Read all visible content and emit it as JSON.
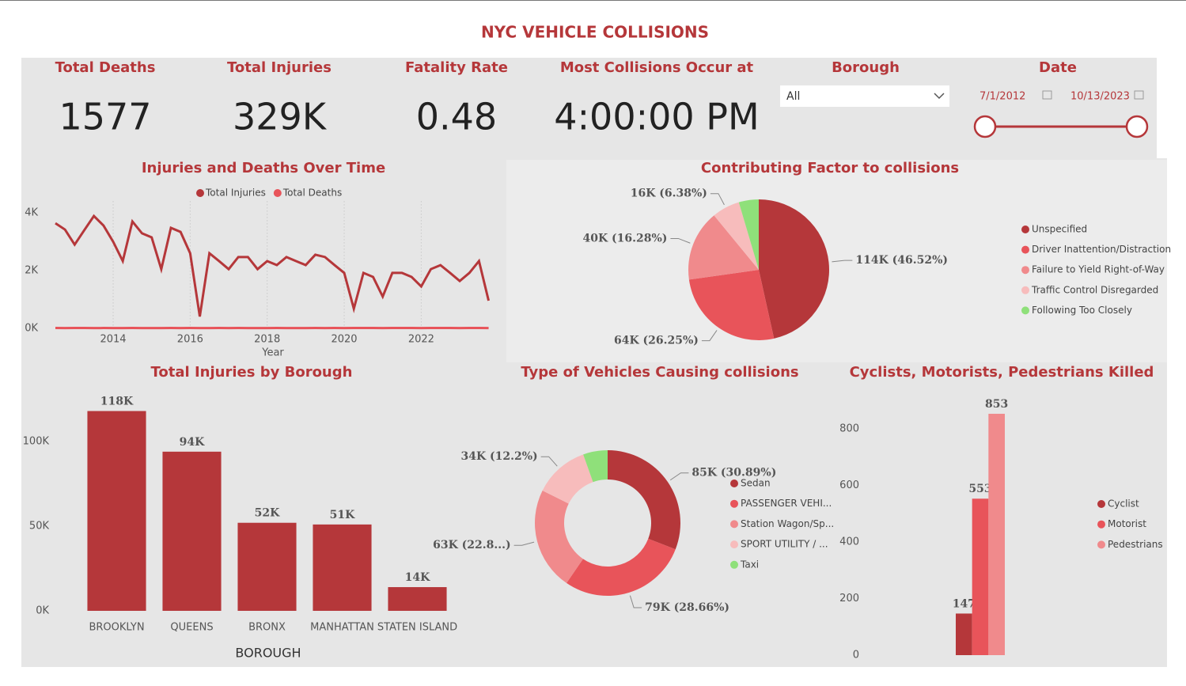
{
  "title": "NYC VEHICLE COLLISIONS",
  "kpis": [
    {
      "label": "Total Deaths",
      "value": 1577
    },
    {
      "label": "Total Injuries",
      "value": "329K"
    },
    {
      "label": "Fatality Rate",
      "value": 0.48
    },
    {
      "label": "Most Collisions Occur at",
      "value": "4:00:00 PM"
    }
  ],
  "filters": {
    "borough": {
      "label": "Borough",
      "value": "All"
    },
    "date": {
      "label": "Date",
      "start": "7/1/2012",
      "end": "10/13/2023"
    }
  },
  "chart_data": [
    {
      "type": "line",
      "title": "Injuries and Deaths Over Time",
      "x_label": "Year",
      "x": [
        2012.5,
        2012.75,
        2013,
        2013.25,
        2013.5,
        2013.75,
        2014,
        2014.25,
        2014.5,
        2014.75,
        2015,
        2015.25,
        2015.5,
        2015.75,
        2016,
        2016.25,
        2016.5,
        2016.75,
        2017,
        2017.25,
        2017.5,
        2017.75,
        2018,
        2018.25,
        2018.5,
        2018.75,
        2019,
        2019.25,
        2019.5,
        2019.75,
        2020,
        2020.25,
        2020.5,
        2020.75,
        2021,
        2021.25,
        2021.5,
        2021.75,
        2022,
        2022.25,
        2022.5,
        2022.75,
        2023,
        2023.25,
        2023.5,
        2023.75
      ],
      "series": [
        {
          "name": "Total Injuries",
          "color": "#b5373a",
          "values": [
            3640,
            3420,
            2900,
            3400,
            3890,
            3560,
            3000,
            2330,
            3700,
            3290,
            3150,
            2050,
            3480,
            3340,
            2600,
            410,
            2600,
            2330,
            2050,
            2470,
            2470,
            2050,
            2330,
            2190,
            2470,
            2330,
            2190,
            2550,
            2470,
            2190,
            1920,
            680,
            1920,
            1780,
            1100,
            1920,
            1920,
            1780,
            1450,
            2050,
            2190,
            1920,
            1640,
            1920,
            2330,
            960
          ]
        },
        {
          "name": "Total Deaths",
          "color": "#e8545a",
          "values": [
            12,
            11,
            13,
            12,
            11,
            12,
            11,
            10,
            12,
            11,
            10,
            11,
            12,
            11,
            12,
            10,
            11,
            12,
            11,
            12,
            11,
            10,
            11,
            12,
            11,
            10,
            11,
            12,
            11,
            12,
            10,
            12,
            13,
            12,
            11,
            12,
            13,
            12,
            11,
            12,
            13,
            12,
            11,
            12,
            13,
            11
          ]
        }
      ],
      "xlim": [
        2012.5,
        2023.8
      ],
      "xticks": [
        2014,
        2016,
        2018,
        2020,
        2022
      ],
      "ylim": [
        0,
        4400
      ],
      "yticks": [
        {
          "value": 0,
          "label": "0K"
        },
        {
          "value": 2000,
          "label": "2K"
        },
        {
          "value": 4000,
          "label": "4K"
        }
      ],
      "grid": true,
      "legend": "top"
    },
    {
      "type": "pie",
      "title": "Contributing Factor to collisions",
      "categories": [
        "Unspecified",
        "Driver Inattention/Distraction",
        "Failure to Yield Right-of-Way",
        "Traffic Control Disregarded",
        "Following Too Closely"
      ],
      "values": [
        46.52,
        26.25,
        16.28,
        6.38,
        4.57
      ],
      "value_labels": [
        "114K (46.52%)",
        "64K (26.25%)",
        "40K (16.28%)",
        "16K (6.38%)",
        null
      ],
      "colors": [
        "#b5373a",
        "#e8545a",
        "#f08a8c",
        "#f7bcbc",
        "#8fe07a"
      ],
      "legend": "right"
    },
    {
      "type": "bar",
      "title": "Total Injuries by Borough",
      "x_label": "BOROUGH",
      "categories": [
        "BROOKLYN",
        "QUEENS",
        "BRONX",
        "MANHATTAN",
        "STATEN ISLAND"
      ],
      "values": [
        118000,
        94000,
        52000,
        51000,
        14000
      ],
      "value_labels": [
        "118K",
        "94K",
        "52K",
        "51K",
        "14K"
      ],
      "color": "#b5373a",
      "ylim": [
        0,
        125000
      ],
      "yticks": [
        {
          "value": 0,
          "label": "0K"
        },
        {
          "value": 50000,
          "label": "50K"
        },
        {
          "value": 100000,
          "label": "100K"
        }
      ]
    },
    {
      "type": "donut",
      "title": "Type of Vehicles Causing collisions",
      "categories": [
        "Sedan",
        "PASSENGER VEHI...",
        "Station Wagon/Sp...",
        "SPORT UTILITY / ...",
        "Taxi"
      ],
      "values": [
        30.89,
        28.66,
        22.8,
        12.2,
        5.45
      ],
      "value_labels": [
        "85K (30.89%)",
        "79K (28.66%)",
        "63K (22.8...)",
        "34K (12.2%)",
        null
      ],
      "colors": [
        "#b5373a",
        "#e8545a",
        "#f08a8c",
        "#f7bcbc",
        "#8fe07a"
      ],
      "legend": "right"
    },
    {
      "type": "bar",
      "title": "Cyclists, Motorists, Pedestrians Killed",
      "series": [
        {
          "name": "Cyclist",
          "color": "#b5373a",
          "values": [
            147
          ]
        },
        {
          "name": "Motorist",
          "color": "#e8545a",
          "values": [
            553
          ]
        },
        {
          "name": "Pedestrians",
          "color": "#f08a8c",
          "values": [
            853
          ]
        }
      ],
      "ylim": [
        0,
        920
      ],
      "yticks": [
        0,
        200,
        400,
        600,
        800
      ],
      "legend": "right"
    }
  ]
}
